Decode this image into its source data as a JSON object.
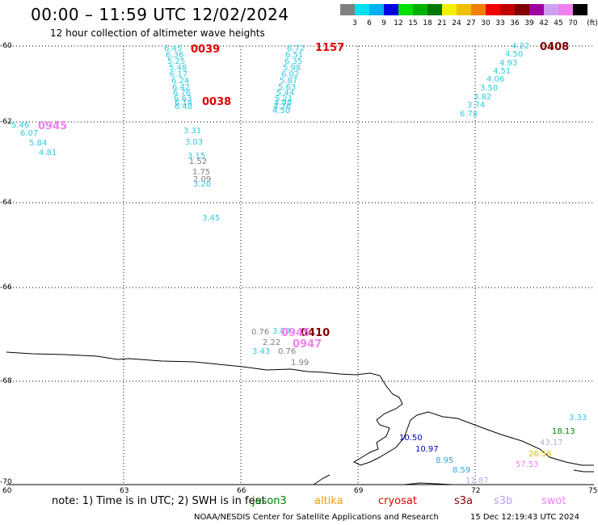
{
  "header": {
    "title": "00:00 – 11:59 UTC 12/02/2024",
    "subtitle": "12 hour collection of altimeter wave heights"
  },
  "legend": {
    "unit": "(ft)",
    "bins": [
      {
        "label": "3",
        "color": "#808080"
      },
      {
        "label": "6",
        "color": "#00e0f0"
      },
      {
        "label": "9",
        "color": "#00b0f0"
      },
      {
        "label": "12",
        "color": "#0000e0"
      },
      {
        "label": "15",
        "color": "#00e000"
      },
      {
        "label": "18",
        "color": "#00b000"
      },
      {
        "label": "21",
        "color": "#007800"
      },
      {
        "label": "24",
        "color": "#f0f000"
      },
      {
        "label": "27",
        "color": "#f0c000"
      },
      {
        "label": "30",
        "color": "#f08000"
      },
      {
        "label": "33",
        "color": "#f00000"
      },
      {
        "label": "36",
        "color": "#c00000"
      },
      {
        "label": "39",
        "color": "#800000"
      },
      {
        "label": "42",
        "color": "#a000a0"
      },
      {
        "label": "45",
        "color": "#d0a0f0"
      },
      {
        "label": "70",
        "color": "#f080f0"
      },
      {
        "label": "",
        "color": "#000000"
      }
    ]
  },
  "axes": {
    "lat_labels": [
      "-60",
      "-62",
      "-64",
      "-66",
      "-68",
      "-70"
    ],
    "lon_labels": [
      "60",
      "63",
      "66",
      "69",
      "72",
      "75"
    ]
  },
  "readings": [
    {
      "t": "6.45",
      "c": "#30c8e0"
    },
    {
      "t": "6.36",
      "c": "#30c8e0"
    },
    {
      "t": "5.25",
      "c": "#30c8e0"
    },
    {
      "t": "5.48",
      "c": "#30c8e0"
    },
    {
      "t": "6.17",
      "c": "#30c8e0"
    },
    {
      "t": "6.24",
      "c": "#30c8e0"
    },
    {
      "t": "6.42",
      "c": "#30c8e0"
    },
    {
      "t": "6.76",
      "c": "#30c8e0"
    },
    {
      "t": "6.63",
      "c": "#30c8e0"
    },
    {
      "t": "6.14",
      "c": "#30c8e0"
    },
    {
      "t": "6.48",
      "c": "#30c8e0"
    },
    {
      "t": "6.72",
      "c": "#30c8e0"
    },
    {
      "t": "6.51",
      "c": "#30c8e0"
    },
    {
      "t": "6.35",
      "c": "#30c8e0"
    },
    {
      "t": "5.98",
      "c": "#30c8e0"
    },
    {
      "t": "6.02",
      "c": "#30c8e0"
    },
    {
      "t": "5.87",
      "c": "#30c8e0"
    },
    {
      "t": "5.63",
      "c": "#30c8e0"
    },
    {
      "t": "5.44",
      "c": "#30c8e0"
    },
    {
      "t": "5.21",
      "c": "#30c8e0"
    },
    {
      "t": "4.98",
      "c": "#30c8e0"
    },
    {
      "t": "4.76",
      "c": "#30c8e0"
    },
    {
      "t": "4.50",
      "c": "#30c8e0"
    },
    {
      "t": "4.22",
      "c": "#30c8e0"
    },
    {
      "t": "4.50",
      "c": "#30c8e0"
    },
    {
      "t": "4.93",
      "c": "#30c8e0"
    },
    {
      "t": "4.51",
      "c": "#30c8e0"
    },
    {
      "t": "4.06",
      "c": "#30c8e0"
    },
    {
      "t": "3.50",
      "c": "#30c8e0"
    },
    {
      "t": "3.82",
      "c": "#30c8e0"
    },
    {
      "t": "3.74",
      "c": "#30c8e0"
    },
    {
      "t": "6.78",
      "c": "#30c8e0"
    },
    {
      "t": "5.46",
      "c": "#30c8e0"
    },
    {
      "t": "6.07",
      "c": "#30c8e0"
    },
    {
      "t": "5.84",
      "c": "#30c8e0"
    },
    {
      "t": "4.81",
      "c": "#30c8e0"
    },
    {
      "t": "3.31",
      "c": "#30c8e0"
    },
    {
      "t": "3.03",
      "c": "#30c8e0"
    },
    {
      "t": "3.15",
      "c": "#30c8e0"
    },
    {
      "t": "1.52",
      "c": "#808080"
    },
    {
      "t": "1.75",
      "c": "#808080"
    },
    {
      "t": "2.09",
      "c": "#808080"
    },
    {
      "t": "3.20",
      "c": "#30c8e0"
    },
    {
      "t": "3.45",
      "c": "#30c8e0"
    },
    {
      "t": "0.76",
      "c": "#808080"
    },
    {
      "t": "3.88",
      "c": "#30c8e0"
    },
    {
      "t": "2.22",
      "c": "#808080"
    },
    {
      "t": "3.43",
      "c": "#30c8e0"
    },
    {
      "t": "0.76",
      "c": "#808080"
    },
    {
      "t": "1.99",
      "c": "#808080"
    },
    {
      "t": "10.50",
      "c": "#0000c0"
    },
    {
      "t": "10.97",
      "c": "#0000c0"
    },
    {
      "t": "8.95",
      "c": "#30a8e0"
    },
    {
      "t": "8.59",
      "c": "#30a8e0"
    },
    {
      "t": "11.87",
      "c": "#b0b0e0"
    },
    {
      "t": "3.33",
      "c": "#30c8e0"
    },
    {
      "t": "18.13",
      "c": "#008000"
    },
    {
      "t": "43.17",
      "c": "#b0b0e0"
    },
    {
      "t": "26.56",
      "c": "#e0c000"
    },
    {
      "t": "57.53",
      "c": "#f080f0"
    }
  ],
  "times": [
    {
      "t": "0039",
      "c": "#e00000"
    },
    {
      "t": "0038",
      "c": "#e00000"
    },
    {
      "t": "1157",
      "c": "#e00000"
    },
    {
      "t": "0408",
      "c": "#800000"
    },
    {
      "t": "0945",
      "c": "#f080f0"
    },
    {
      "t": "0410",
      "c": "#800000"
    },
    {
      "t": "0945",
      "c": "#f080f0"
    },
    {
      "t": "0947",
      "c": "#f080f0"
    }
  ],
  "footer": {
    "note": "note: 1) Time is in UTC; 2) SWH is in feet",
    "satellites": [
      {
        "name": "jason3",
        "color": "#008000"
      },
      {
        "name": "altika",
        "color": "#f0a000"
      },
      {
        "name": "cryosat",
        "color": "#e00000"
      },
      {
        "name": "s3a",
        "color": "#800000"
      },
      {
        "name": "s3b",
        "color": "#c0a0f0"
      },
      {
        "name": "swot",
        "color": "#f080f0"
      }
    ],
    "credit": "NOAA/NESDIS Center for Satellite Applications and Research",
    "timestamp": "15 Dec 12:19:43 UTC 2024"
  }
}
